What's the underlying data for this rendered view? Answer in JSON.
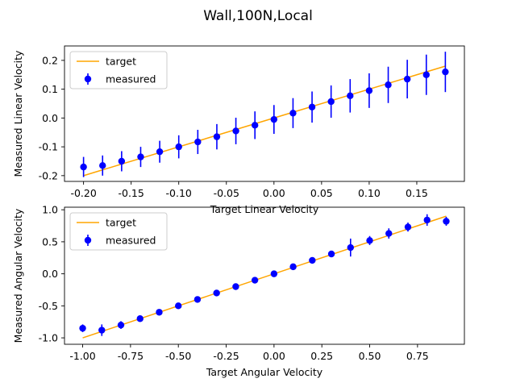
{
  "figure": {
    "suptitle": "Wall,100N,Local"
  },
  "colors": {
    "target": "#FFA500",
    "measured": "#0000FF",
    "axes": "#000000",
    "background": "#ffffff"
  },
  "chart_data": [
    {
      "type": "line",
      "title": "",
      "xlabel": "Target Linear Velocity",
      "ylabel": "Measured Linear Velocity",
      "xlim": [
        -0.22,
        0.2
      ],
      "ylim": [
        -0.22,
        0.25
      ],
      "xticks": [
        -0.2,
        -0.15,
        -0.1,
        -0.05,
        0.0,
        0.05,
        0.1,
        0.15
      ],
      "xtick_labels": [
        "-0.20",
        "-0.15",
        "-0.10",
        "-0.05",
        "0.00",
        "0.05",
        "0.10",
        "0.15"
      ],
      "yticks": [
        -0.2,
        -0.1,
        0.0,
        0.1,
        0.2
      ],
      "ytick_labels": [
        "-0.2",
        "-0.1",
        "0.0",
        "0.1",
        "0.2"
      ],
      "grid": false,
      "legend": {
        "location": "upper-left",
        "entries": [
          "target",
          "measured"
        ]
      },
      "series": [
        {
          "name": "target",
          "kind": "line",
          "x": [
            -0.2,
            0.18
          ],
          "y": [
            -0.2,
            0.18
          ]
        },
        {
          "name": "measured",
          "kind": "errorbar",
          "x": [
            -0.2,
            -0.18,
            -0.16,
            -0.14,
            -0.12,
            -0.1,
            -0.08,
            -0.06,
            -0.04,
            -0.02,
            0.0,
            0.02,
            0.04,
            0.06,
            0.08,
            0.1,
            0.12,
            0.14,
            0.16,
            0.18
          ],
          "y": [
            -0.17,
            -0.165,
            -0.15,
            -0.135,
            -0.117,
            -0.1,
            -0.083,
            -0.065,
            -0.045,
            -0.025,
            -0.005,
            0.017,
            0.038,
            0.057,
            0.077,
            0.095,
            0.115,
            0.135,
            0.15,
            0.16
          ],
          "yerr": [
            0.035,
            0.035,
            0.035,
            0.035,
            0.038,
            0.04,
            0.042,
            0.044,
            0.046,
            0.048,
            0.05,
            0.052,
            0.054,
            0.056,
            0.058,
            0.06,
            0.063,
            0.067,
            0.07,
            0.07
          ]
        }
      ]
    },
    {
      "type": "line",
      "title": "",
      "xlabel": "Target Angular Velocity",
      "ylabel": "Measured Angular Velocity",
      "xlim": [
        -1.095,
        0.995
      ],
      "ylim": [
        -1.1,
        1.04
      ],
      "xticks": [
        -1.0,
        -0.75,
        -0.5,
        -0.25,
        0.0,
        0.25,
        0.5,
        0.75
      ],
      "xtick_labels": [
        "-1.00",
        "-0.75",
        "-0.50",
        "-0.25",
        "0.00",
        "0.25",
        "0.50",
        "0.75"
      ],
      "yticks": [
        -1.0,
        -0.5,
        0.0,
        0.5,
        1.0
      ],
      "ytick_labels": [
        "-1.0",
        "-0.5",
        "0.0",
        "0.5",
        "1.0"
      ],
      "grid": false,
      "legend": {
        "location": "upper-left",
        "entries": [
          "target",
          "measured"
        ]
      },
      "series": [
        {
          "name": "target",
          "kind": "line",
          "x": [
            -1.0,
            0.9
          ],
          "y": [
            -1.0,
            0.9
          ]
        },
        {
          "name": "measured",
          "kind": "errorbar",
          "x": [
            -1.0,
            -0.9,
            -0.8,
            -0.7,
            -0.6,
            -0.5,
            -0.4,
            -0.3,
            -0.2,
            -0.1,
            0.0,
            0.1,
            0.2,
            0.3,
            0.4,
            0.5,
            0.6,
            0.7,
            0.8,
            0.9
          ],
          "y": [
            -0.85,
            -0.88,
            -0.8,
            -0.7,
            -0.6,
            -0.5,
            -0.4,
            -0.3,
            -0.2,
            -0.1,
            0.0,
            0.11,
            0.21,
            0.31,
            0.41,
            0.52,
            0.63,
            0.73,
            0.84,
            0.82
          ],
          "yerr": [
            0.06,
            0.09,
            0.06,
            0.05,
            0.025,
            0.02,
            0.02,
            0.02,
            0.015,
            0.015,
            0.015,
            0.02,
            0.02,
            0.025,
            0.14,
            0.07,
            0.08,
            0.07,
            0.09,
            0.07
          ]
        }
      ]
    }
  ]
}
